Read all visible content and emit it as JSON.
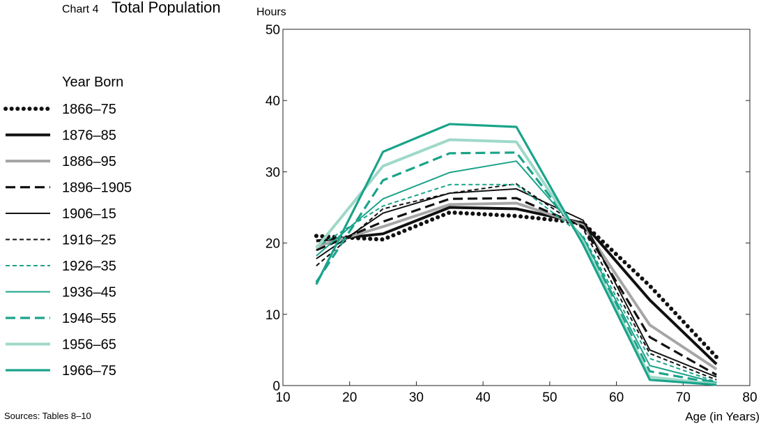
{
  "chart_data": {
    "type": "line",
    "chart_label": "Chart 4",
    "title": "Total Population",
    "ylabel": "Hours",
    "xlabel": "Age (in Years)",
    "legend_title": "Year Born",
    "source": "Sources: Tables 8–10",
    "xlim": [
      10,
      80
    ],
    "ylim": [
      0,
      50
    ],
    "xticks": [
      "10",
      "20",
      "30",
      "40",
      "50",
      "60",
      "70",
      "80"
    ],
    "yticks": [
      "0",
      "10",
      "20",
      "30",
      "40",
      "50"
    ],
    "x": [
      15,
      25,
      35,
      45,
      55,
      65,
      75
    ],
    "grid": false,
    "legend_position": "left",
    "series": [
      {
        "name": "1866–75",
        "color": "#111111",
        "style": "dotted",
        "values": [
          21.0,
          20.5,
          24.3,
          23.8,
          22.8,
          14.0,
          4.0
        ]
      },
      {
        "name": "1876–85",
        "color": "#111111",
        "style": "solid-thick",
        "values": [
          20.3,
          21.3,
          25.0,
          24.8,
          22.8,
          12.0,
          3.0
        ]
      },
      {
        "name": "1886–95",
        "color": "#a6a6a6",
        "style": "solid-thick",
        "values": [
          19.5,
          22.3,
          25.4,
          25.6,
          22.5,
          8.5,
          2.3
        ]
      },
      {
        "name": "1896–1905",
        "color": "#111111",
        "style": "dashed-thick",
        "values": [
          19.0,
          23.0,
          26.2,
          26.3,
          22.3,
          6.8,
          1.5
        ]
      },
      {
        "name": "1906–15",
        "color": "#111111",
        "style": "solid-thin",
        "values": [
          17.8,
          24.2,
          27.0,
          27.6,
          23.2,
          5.0,
          1.2
        ]
      },
      {
        "name": "1916–25",
        "color": "#111111",
        "style": "dashed-thin",
        "values": [
          16.8,
          24.8,
          27.0,
          28.3,
          22.0,
          4.5,
          0.8
        ]
      },
      {
        "name": "1926–35",
        "color": "#1aa38a",
        "style": "dashed-thin",
        "values": [
          19.4,
          25.2,
          28.2,
          28.2,
          21.0,
          3.8,
          0.5
        ]
      },
      {
        "name": "1936–45",
        "color": "#1aa38a",
        "style": "solid-thin",
        "values": [
          18.2,
          26.2,
          29.9,
          31.5,
          20.8,
          2.8,
          0.4
        ]
      },
      {
        "name": "1946–55",
        "color": "#1aa38a",
        "style": "dashed-thick",
        "values": [
          14.5,
          28.8,
          32.6,
          32.7,
          20.5,
          2.0,
          0.3
        ]
      },
      {
        "name": "1956–65",
        "color": "#9fd8c9",
        "style": "solid-thick",
        "values": [
          19.3,
          30.8,
          34.5,
          34.2,
          20.2,
          1.2,
          0.2
        ]
      },
      {
        "name": "1966–75",
        "color": "#1aa38a",
        "style": "solid-medium",
        "values": [
          14.2,
          32.8,
          36.7,
          36.3,
          19.8,
          0.8,
          0.1
        ]
      }
    ]
  }
}
